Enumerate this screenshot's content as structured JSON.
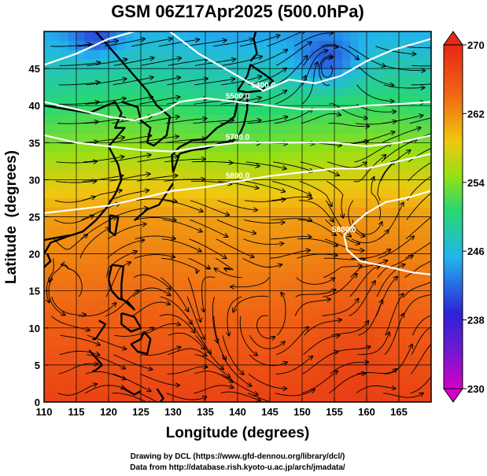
{
  "title": "GSM 06Z17Apr2025 (500.0hPa)",
  "credits": [
    "Drawing by DCL (https://www.gfd-dennou.org/library/dcl/)",
    "Data from http://database.rish.kyoto-u.ac.jp/arch/jmadata/"
  ],
  "chart_data": {
    "type": "heatmap",
    "title": "GSM 06Z17Apr2025 (500.0hPa)",
    "xlabel": "Longitude (degrees)",
    "ylabel": "Latitude  (degrees)",
    "xlim": [
      110,
      170
    ],
    "ylim": [
      0,
      50
    ],
    "xticks": [
      110,
      115,
      120,
      125,
      130,
      135,
      140,
      145,
      150,
      155,
      160,
      165
    ],
    "yticks": [
      0,
      5,
      10,
      15,
      20,
      25,
      30,
      35,
      40,
      45
    ],
    "grid": true,
    "colorbar": {
      "min": 230,
      "max": 270,
      "ticks": [
        270,
        262,
        254,
        246,
        238,
        230
      ],
      "colors": [
        "#d400c8",
        "#2d22d8",
        "#22b4ee",
        "#28d870",
        "#96e014",
        "#f0c810",
        "#f06414",
        "#e62814"
      ]
    },
    "contours": [
      {
        "label": "5400.0",
        "points": [
          [
            110,
            45.5
          ],
          [
            115,
            47
          ],
          [
            120,
            49
          ],
          [
            128,
            51
          ],
          [
            134,
            47
          ],
          [
            140,
            44
          ],
          [
            144,
            42
          ],
          [
            148,
            43.5
          ],
          [
            152,
            43
          ],
          [
            156,
            44
          ],
          [
            160,
            46
          ],
          [
            164,
            47.5
          ],
          [
            170,
            49
          ]
        ]
      },
      {
        "label": "5500.0",
        "points": [
          [
            110,
            40.5
          ],
          [
            115,
            39.5
          ],
          [
            120,
            38.5
          ],
          [
            124,
            38
          ],
          [
            128,
            39
          ],
          [
            131,
            40.5
          ],
          [
            135,
            41
          ],
          [
            140,
            40.5
          ],
          [
            145,
            40
          ],
          [
            150,
            39.5
          ],
          [
            155,
            39.5
          ],
          [
            160,
            40
          ],
          [
            165,
            40.2
          ],
          [
            170,
            40.5
          ]
        ]
      },
      {
        "label": "5700.0",
        "points": [
          [
            110,
            36
          ],
          [
            115,
            35
          ],
          [
            120,
            34.5
          ],
          [
            125,
            34
          ],
          [
            130,
            33.8
          ],
          [
            135,
            34.5
          ],
          [
            140,
            35
          ],
          [
            145,
            35
          ],
          [
            150,
            35
          ],
          [
            155,
            35
          ],
          [
            160,
            34.5
          ],
          [
            165,
            35
          ],
          [
            170,
            36
          ]
        ]
      },
      {
        "label": "5800.0",
        "points": [
          [
            110,
            25.5
          ],
          [
            115,
            26
          ],
          [
            120,
            26.5
          ],
          [
            125,
            27.5
          ],
          [
            130,
            28.5
          ],
          [
            135,
            29
          ],
          [
            140,
            29.8
          ],
          [
            145,
            30.5
          ],
          [
            150,
            31
          ],
          [
            155,
            31.5
          ],
          [
            160,
            31.5
          ],
          [
            165,
            32.5
          ],
          [
            170,
            33.5
          ]
        ]
      },
      {
        "label": "5880.0",
        "points": [
          [
            170,
            28.5
          ],
          [
            166,
            27.5
          ],
          [
            163,
            27
          ],
          [
            160,
            25.5
          ],
          [
            158,
            24
          ],
          [
            156.5,
            22.5
          ],
          [
            157,
            20.5
          ],
          [
            159,
            19
          ],
          [
            163,
            18.3
          ],
          [
            167,
            17.5
          ],
          [
            170,
            17.2
          ]
        ]
      }
    ],
    "features": [
      "streamlines",
      "coastlines"
    ]
  }
}
